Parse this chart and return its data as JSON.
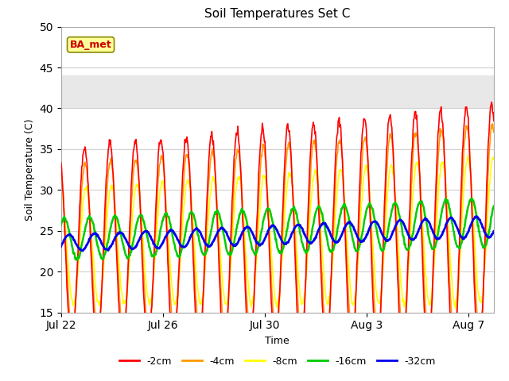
{
  "title": "Soil Temperatures Set C",
  "xlabel": "Time",
  "ylabel": "Soil Temperature (C)",
  "ylim": [
    15,
    50
  ],
  "yticks": [
    15,
    20,
    25,
    30,
    35,
    40,
    45,
    50
  ],
  "annotation_text": "BA_met",
  "annotation_color": "#cc0000",
  "annotation_bg": "#ffff99",
  "annotation_border": "#888800",
  "shaded_ymin": 40,
  "shaded_ymax": 44,
  "shaded_color": "#e8e8e8",
  "line_colors": {
    "-2cm": "#ff0000",
    "-4cm": "#ff9900",
    "-8cm": "#ffff00",
    "-16cm": "#00cc00",
    "-32cm": "#0000ee"
  },
  "line_widths": {
    "-2cm": 1.2,
    "-4cm": 1.2,
    "-8cm": 1.2,
    "-16cm": 1.8,
    "-32cm": 2.0
  },
  "x_tick_labels": [
    "Jul 22",
    "Jul 26",
    "Jul 30",
    "Aug 3",
    "Aug 7"
  ],
  "x_tick_positions": [
    0,
    4,
    8,
    12,
    16
  ],
  "total_days": 17,
  "pts_per_day": 48,
  "background_plot": "#ffffff",
  "grid_color": "#d0d0d0",
  "figsize": [
    6.4,
    4.8
  ],
  "dpi": 100
}
